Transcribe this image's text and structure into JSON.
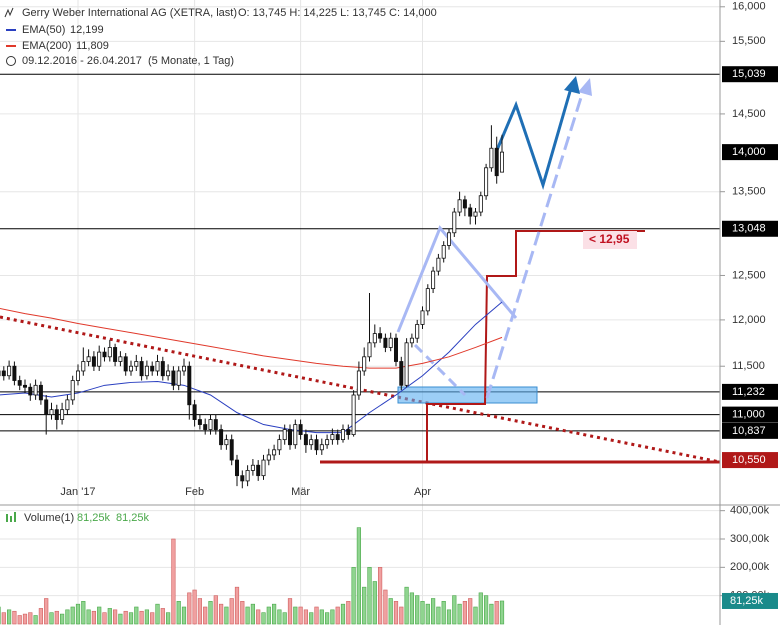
{
  "chart_data": {
    "type": "candlestick",
    "title": "Gerry Weber International AG (XETRA, last)",
    "header": "O: 13,745   H: 14,225   L: 13,745   C: 14,000",
    "date_range": "09.12.2016 - 26.04.2017",
    "period": "(5 Monate, 1 Tag)",
    "annotation": "< 12,95",
    "log_scale": true,
    "grid": true,
    "ylim": [
      10.17,
      16.1
    ],
    "yticks": [
      {
        "value": 16,
        "label": "16,000"
      },
      {
        "value": 15.5,
        "label": "15,500"
      },
      {
        "value": 14.5,
        "label": "14,500"
      },
      {
        "value": 13.5,
        "label": "13,500"
      },
      {
        "value": 12.5,
        "label": "12,500"
      },
      {
        "value": 12,
        "label": "12,000"
      },
      {
        "value": 11.5,
        "label": "11,500"
      }
    ],
    "levels": [
      {
        "value": 15.039,
        "label": "15,039",
        "color": "#000000",
        "line": true
      },
      {
        "value": 14,
        "label": "14,000",
        "color": "#000000",
        "line": false
      },
      {
        "value": 13.048,
        "label": "13,048",
        "color": "#000000",
        "line": true
      },
      {
        "value": 11.232,
        "label": "11,232",
        "color": "#000000",
        "line": true
      },
      {
        "value": 11,
        "label": "11,000",
        "color": "#000000",
        "line": true
      },
      {
        "value": 10.837,
        "label": "10,837",
        "color": "#000000",
        "line": true
      },
      {
        "value": 10.55,
        "label": "10,550",
        "color": "#b01818",
        "line": false
      }
    ],
    "categories": [
      null,
      null,
      null,
      null,
      null,
      null,
      null,
      null,
      null,
      null,
      null,
      null,
      null,
      null,
      null,
      "Jan '17",
      null,
      null,
      null,
      null,
      null,
      null,
      null,
      null,
      null,
      null,
      null,
      null,
      null,
      null,
      null,
      null,
      null,
      null,
      null,
      null,
      null,
      "Feb",
      null,
      null,
      null,
      null,
      null,
      null,
      null,
      null,
      null,
      null,
      null,
      null,
      null,
      null,
      null,
      null,
      null,
      null,
      null,
      "Mär",
      null,
      null,
      null,
      null,
      null,
      null,
      null,
      null,
      null,
      null,
      null,
      null,
      null,
      null,
      null,
      null,
      null,
      null,
      null,
      null,
      null,
      null,
      "Apr",
      null,
      null,
      null,
      null,
      null,
      null,
      null,
      null,
      null,
      null,
      null,
      null,
      null,
      null,
      null
    ],
    "ohlc": [
      [
        11.4,
        11.52,
        11.34,
        11.45
      ],
      [
        11.45,
        11.5,
        11.35,
        11.4
      ],
      [
        11.4,
        11.56,
        11.36,
        11.5
      ],
      [
        11.5,
        11.55,
        11.3,
        11.35
      ],
      [
        11.35,
        11.4,
        11.25,
        11.3
      ],
      [
        11.3,
        11.36,
        11.22,
        11.28
      ],
      [
        11.28,
        11.32,
        11.14,
        11.2
      ],
      [
        11.2,
        11.36,
        11.15,
        11.3
      ],
      [
        11.3,
        11.34,
        11.1,
        11.15
      ],
      [
        11.15,
        11.2,
        10.8,
        11.0
      ],
      [
        11.0,
        11.12,
        10.95,
        11.05
      ],
      [
        11.05,
        11.1,
        10.85,
        10.95
      ],
      [
        10.95,
        11.12,
        10.9,
        11.05
      ],
      [
        11.05,
        11.2,
        11.0,
        11.15
      ],
      [
        11.15,
        11.4,
        11.1,
        11.35
      ],
      [
        11.35,
        11.52,
        11.3,
        11.45
      ],
      [
        11.45,
        11.7,
        11.4,
        11.55
      ],
      [
        11.55,
        11.68,
        11.5,
        11.6
      ],
      [
        11.6,
        11.66,
        11.45,
        11.5
      ],
      [
        11.5,
        11.72,
        11.45,
        11.65
      ],
      [
        11.65,
        11.7,
        11.55,
        11.6
      ],
      [
        11.6,
        11.78,
        11.55,
        11.7
      ],
      [
        11.7,
        11.74,
        11.5,
        11.55
      ],
      [
        11.55,
        11.66,
        11.5,
        11.6
      ],
      [
        11.6,
        11.64,
        11.4,
        11.45
      ],
      [
        11.45,
        11.56,
        11.4,
        11.5
      ],
      [
        11.5,
        11.62,
        11.45,
        11.55
      ],
      [
        11.55,
        11.6,
        11.35,
        11.4
      ],
      [
        11.4,
        11.56,
        11.36,
        11.5
      ],
      [
        11.5,
        11.55,
        11.4,
        11.45
      ],
      [
        11.45,
        11.62,
        11.4,
        11.55
      ],
      [
        11.55,
        11.6,
        11.35,
        11.4
      ],
      [
        11.4,
        11.52,
        11.35,
        11.45
      ],
      [
        11.45,
        11.5,
        11.25,
        11.3
      ],
      [
        11.3,
        11.5,
        11.25,
        11.45
      ],
      [
        11.45,
        11.58,
        11.4,
        11.5
      ],
      [
        11.5,
        11.55,
        10.95,
        11.1
      ],
      [
        11.1,
        11.15,
        10.88,
        10.95
      ],
      [
        10.95,
        11.0,
        10.85,
        10.9
      ],
      [
        10.9,
        10.96,
        10.8,
        10.85
      ],
      [
        10.85,
        11.0,
        10.8,
        10.95
      ],
      [
        10.95,
        11.0,
        10.8,
        10.85
      ],
      [
        10.85,
        10.9,
        10.65,
        10.7
      ],
      [
        10.7,
        10.8,
        10.65,
        10.75
      ],
      [
        10.75,
        10.8,
        10.5,
        10.55
      ],
      [
        10.55,
        10.6,
        10.3,
        10.4
      ],
      [
        10.4,
        10.45,
        10.28,
        10.35
      ],
      [
        10.35,
        10.5,
        10.3,
        10.45
      ],
      [
        10.45,
        10.56,
        10.4,
        10.5
      ],
      [
        10.5,
        10.55,
        10.35,
        10.4
      ],
      [
        10.4,
        10.6,
        10.36,
        10.55
      ],
      [
        10.55,
        10.66,
        10.5,
        10.6
      ],
      [
        10.6,
        10.7,
        10.55,
        10.65
      ],
      [
        10.65,
        10.8,
        10.6,
        10.75
      ],
      [
        10.75,
        10.9,
        10.7,
        10.85
      ],
      [
        10.85,
        10.9,
        10.65,
        10.7
      ],
      [
        10.7,
        10.95,
        10.66,
        10.9
      ],
      [
        10.9,
        10.95,
        10.75,
        10.8
      ],
      [
        10.8,
        10.85,
        10.62,
        10.7
      ],
      [
        10.7,
        10.8,
        10.65,
        10.75
      ],
      [
        10.75,
        10.8,
        10.6,
        10.65
      ],
      [
        10.65,
        10.76,
        10.6,
        10.7
      ],
      [
        10.7,
        10.8,
        10.66,
        10.75
      ],
      [
        10.75,
        10.86,
        10.7,
        10.8
      ],
      [
        10.8,
        10.85,
        10.7,
        10.75
      ],
      [
        10.75,
        10.9,
        10.72,
        10.85
      ],
      [
        10.85,
        10.9,
        10.75,
        10.8
      ],
      [
        10.8,
        11.25,
        10.78,
        11.2
      ],
      [
        11.2,
        11.55,
        11.15,
        11.45
      ],
      [
        11.45,
        11.7,
        11.4,
        11.6
      ],
      [
        11.6,
        12.3,
        11.55,
        11.75
      ],
      [
        11.75,
        11.95,
        11.7,
        11.85
      ],
      [
        11.85,
        11.92,
        11.75,
        11.8
      ],
      [
        11.8,
        11.85,
        11.65,
        11.7
      ],
      [
        11.7,
        11.86,
        11.66,
        11.8
      ],
      [
        11.8,
        11.85,
        11.5,
        11.55
      ],
      [
        11.55,
        11.6,
        11.25,
        11.3
      ],
      [
        11.3,
        11.8,
        11.28,
        11.75
      ],
      [
        11.75,
        11.85,
        11.7,
        11.8
      ],
      [
        11.8,
        12.0,
        11.75,
        11.95
      ],
      [
        11.95,
        12.15,
        11.9,
        12.1
      ],
      [
        12.1,
        12.4,
        12.05,
        12.35
      ],
      [
        12.35,
        12.6,
        12.3,
        12.55
      ],
      [
        12.55,
        12.75,
        12.5,
        12.7
      ],
      [
        12.7,
        12.9,
        12.65,
        12.85
      ],
      [
        12.85,
        13.05,
        12.8,
        13.0
      ],
      [
        13.0,
        13.3,
        12.95,
        13.25
      ],
      [
        13.25,
        13.5,
        13.2,
        13.4
      ],
      [
        13.4,
        13.45,
        13.2,
        13.3
      ],
      [
        13.3,
        13.35,
        13.1,
        13.2
      ],
      [
        13.2,
        13.3,
        13.1,
        13.25
      ],
      [
        13.25,
        13.5,
        13.2,
        13.45
      ],
      [
        13.45,
        13.85,
        13.4,
        13.8
      ],
      [
        13.8,
        14.35,
        13.75,
        14.05
      ],
      [
        14.05,
        14.2,
        13.6,
        13.7
      ],
      [
        13.745,
        14.225,
        13.745,
        14.0
      ]
    ],
    "series": [
      {
        "name": "EMA(50)",
        "color": "#2a3fc0",
        "legend_value": "12,199",
        "x": [
          0,
          5,
          10,
          15,
          20,
          25,
          30,
          35,
          40,
          45,
          50,
          55,
          60,
          65,
          70,
          75,
          80,
          85,
          90,
          95
        ],
        "values": [
          11.2,
          11.22,
          11.18,
          11.22,
          11.3,
          11.33,
          11.34,
          11.3,
          11.2,
          11.02,
          10.9,
          10.85,
          10.82,
          10.82,
          11.02,
          11.2,
          11.4,
          11.65,
          11.95,
          12.199
        ]
      },
      {
        "name": "EMA(200)",
        "color": "#e0392b",
        "legend_value": "11,809",
        "x": [
          0,
          5,
          10,
          15,
          20,
          25,
          30,
          35,
          40,
          45,
          50,
          55,
          60,
          65,
          70,
          75,
          80,
          85,
          90,
          95
        ],
        "values": [
          12.13,
          12.07,
          12.02,
          11.96,
          11.91,
          11.86,
          11.81,
          11.76,
          11.71,
          11.66,
          11.61,
          11.57,
          11.53,
          11.5,
          11.48,
          11.48,
          11.53,
          11.6,
          11.7,
          11.809
        ]
      }
    ],
    "volume": {
      "title": "Volume(1)",
      "legend_values": [
        "81,25k",
        "81,25k"
      ],
      "last_label": "81,25k",
      "ylim": [
        0,
        420
      ],
      "yticks": [
        {
          "value": 100,
          "label": "100,00k"
        },
        {
          "value": 200,
          "label": "200,00k"
        },
        {
          "value": 300,
          "label": "300,00k"
        },
        {
          "value": 400,
          "label": "400,00k"
        }
      ],
      "values": [
        60,
        40,
        50,
        45,
        30,
        35,
        40,
        30,
        55,
        90,
        40,
        45,
        35,
        50,
        60,
        70,
        80,
        50,
        45,
        60,
        40,
        55,
        50,
        35,
        45,
        40,
        60,
        45,
        50,
        40,
        70,
        55,
        40,
        300,
        80,
        60,
        110,
        120,
        90,
        60,
        80,
        100,
        70,
        60,
        90,
        130,
        80,
        60,
        70,
        50,
        40,
        60,
        70,
        50,
        40,
        90,
        60,
        60,
        50,
        40,
        60,
        50,
        40,
        50,
        60,
        70,
        80,
        200,
        340,
        130,
        200,
        150,
        200,
        120,
        90,
        80,
        60,
        130,
        110,
        100,
        80,
        70,
        90,
        60,
        80,
        50,
        100,
        70,
        80,
        90,
        60,
        110,
        100,
        70,
        80,
        81.25
      ]
    }
  }
}
